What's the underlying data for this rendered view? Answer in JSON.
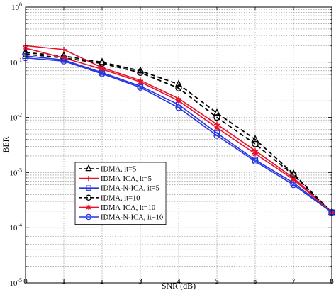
{
  "chart_data": {
    "type": "line",
    "xlabel": "SNR (dB)",
    "ylabel": "BER",
    "x_ticks": [
      "0",
      "1",
      "2",
      "3",
      "4",
      "5",
      "6",
      "7",
      "8"
    ],
    "y_ticks": [
      {
        "base": "10",
        "exp": "0"
      },
      {
        "base": "10",
        "exp": "-1"
      },
      {
        "base": "10",
        "exp": "-2"
      },
      {
        "base": "10",
        "exp": "-3"
      },
      {
        "base": "10",
        "exp": "-4"
      },
      {
        "base": "10",
        "exp": "-5"
      }
    ],
    "xlim": [
      0,
      8
    ],
    "ylim": [
      1e-05,
      1
    ],
    "y_scale": "log",
    "grid": true,
    "legend_position": "lower-left",
    "x": [
      0,
      1,
      2,
      3,
      4,
      5,
      6,
      7,
      8
    ],
    "series": [
      {
        "name": "IDMA, it=5",
        "color": "#000000",
        "dash": "dashed",
        "marker": "triangle",
        "values": [
          0.15,
          0.13,
          0.1,
          0.07,
          0.04,
          0.012,
          0.004,
          0.00095,
          0.00019
        ]
      },
      {
        "name": "IDMA-ICA, it=5",
        "color": "#e8102a",
        "dash": "solid",
        "marker": "plus",
        "values": [
          0.2,
          0.17,
          0.08,
          0.047,
          0.022,
          0.0075,
          0.0025,
          0.0008,
          0.00019
        ]
      },
      {
        "name": "IDMA-N-ICA, it=5",
        "color": "#2535e0",
        "dash": "solid",
        "marker": "square",
        "values": [
          0.13,
          0.11,
          0.065,
          0.037,
          0.017,
          0.0052,
          0.0017,
          0.00065,
          0.00019
        ]
      },
      {
        "name": "IDMA, it=10",
        "color": "#000000",
        "dash": "dashed",
        "marker": "circle",
        "values": [
          0.14,
          0.12,
          0.095,
          0.065,
          0.034,
          0.01,
          0.0033,
          0.0009,
          0.00019
        ]
      },
      {
        "name": "IDMA-ICA, it=10",
        "color": "#e8102a",
        "dash": "solid",
        "marker": "star",
        "values": [
          0.18,
          0.12,
          0.075,
          0.044,
          0.02,
          0.0065,
          0.0022,
          0.00075,
          0.00019
        ]
      },
      {
        "name": "IDMA-N-ICA, it=10",
        "color": "#2535e0",
        "dash": "solid",
        "marker": "circle",
        "values": [
          0.12,
          0.105,
          0.062,
          0.035,
          0.015,
          0.0047,
          0.0016,
          0.0006,
          0.00019
        ]
      }
    ]
  }
}
